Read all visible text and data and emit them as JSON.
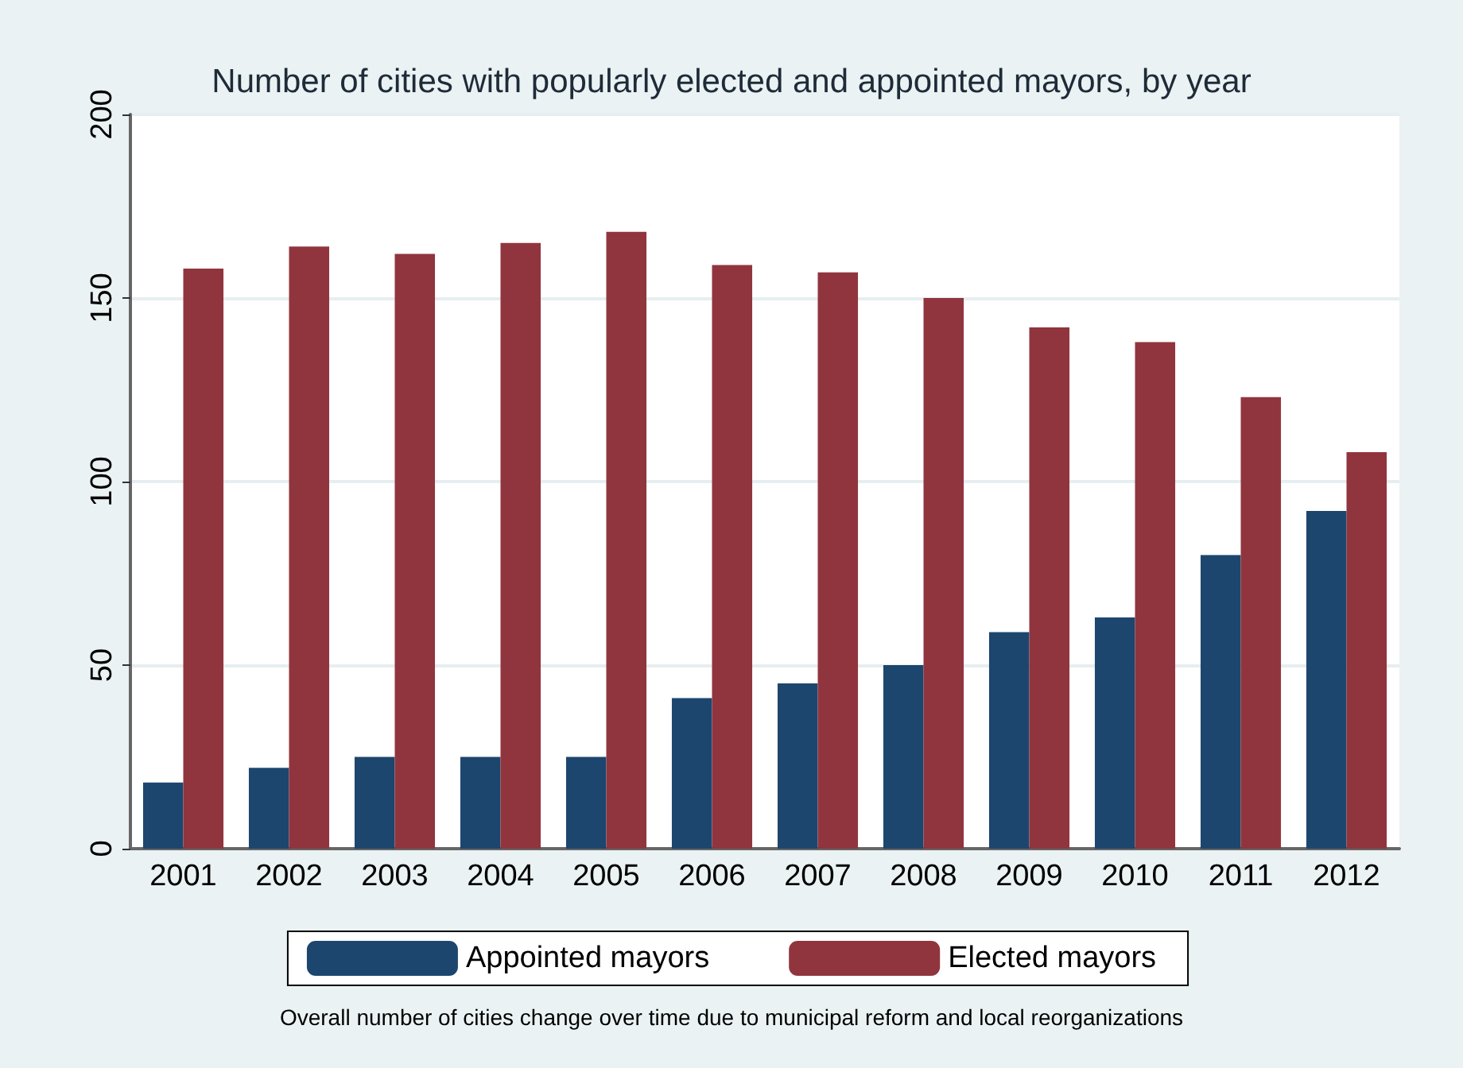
{
  "chart_data": {
    "type": "bar",
    "title": "Number of cities with popularly elected and appointed mayors, by year",
    "categories": [
      "2001",
      "2002",
      "2003",
      "2004",
      "2005",
      "2006",
      "2007",
      "2008",
      "2009",
      "2010",
      "2011",
      "2012"
    ],
    "series": [
      {
        "name": "Appointed mayors",
        "color": "#1c466e",
        "values": [
          18,
          22,
          25,
          25,
          25,
          41,
          45,
          50,
          59,
          63,
          80,
          92
        ]
      },
      {
        "name": "Elected mayors",
        "color": "#90353e",
        "values": [
          158,
          164,
          162,
          165,
          168,
          159,
          157,
          150,
          142,
          138,
          123,
          108
        ]
      }
    ],
    "ylim": [
      0,
      200
    ],
    "yticks": [
      0,
      50,
      100,
      150,
      200
    ],
    "grid": "y",
    "legend": "bottom",
    "annotations": [
      "Overall number of cities change over time due to municipal reform and local reorganizations"
    ]
  }
}
